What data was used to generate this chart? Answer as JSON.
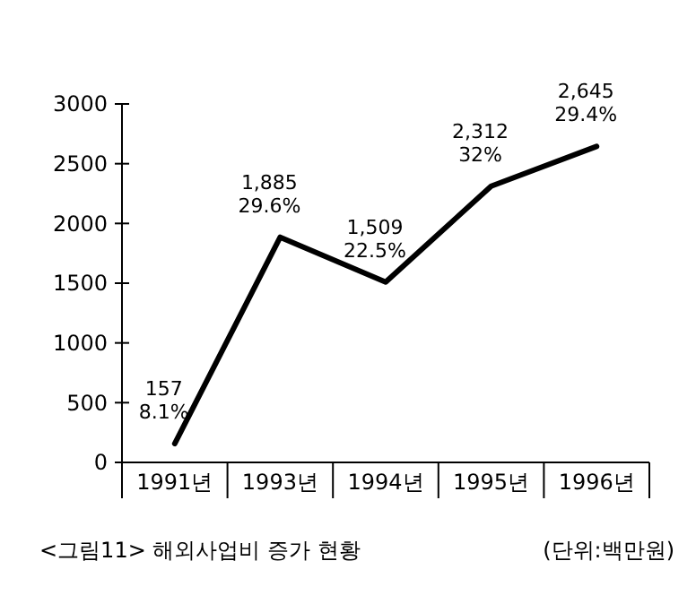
{
  "chart_data": {
    "type": "line",
    "title": "<그림11> 해외사업비 증가 현황",
    "annotations": [
      "(단위:백만원)"
    ],
    "categories": [
      "1991년",
      "1993년",
      "1994년",
      "1995년",
      "1996년"
    ],
    "series": [
      {
        "color": "#000000",
        "values": [
          157,
          1885,
          1509,
          2312,
          2645
        ],
        "value_labels": [
          "157\n8.1%",
          "1,885\n29.6%",
          "1,509\n22.5%",
          "2,312\n32%",
          "2,645\n29.4%"
        ]
      }
    ],
    "ylim": [
      0,
      3000
    ],
    "yticks": [
      0,
      500,
      1000,
      1500,
      2000,
      2500,
      3000
    ],
    "grid": false,
    "marker": "none",
    "line_style": "solid"
  }
}
